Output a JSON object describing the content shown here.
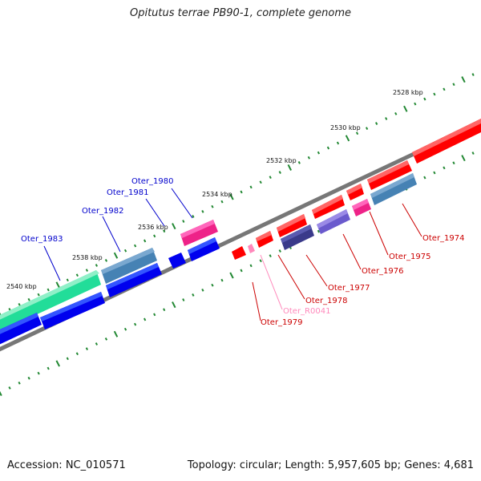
{
  "title": "Opitutus terrae PB90-1, complete genome",
  "footer": {
    "accession": "Accession: NC_010571",
    "topology": "Topology: circular",
    "length": "Length: 5,957,605 bp",
    "genes": "Genes: 4,681"
  },
  "ticks": [
    {
      "label": "2528 kbp"
    },
    {
      "label": "2530 kbp"
    },
    {
      "label": "2532 kbp"
    },
    {
      "label": "2534 kbp"
    },
    {
      "label": "2536 kbp"
    },
    {
      "label": "2538 kbp"
    },
    {
      "label": "2540 kbp"
    }
  ],
  "genes": [
    {
      "label": "Oter_1980",
      "color": "#0000cc"
    },
    {
      "label": "Oter_1981",
      "color": "#0000cc"
    },
    {
      "label": "Oter_1982",
      "color": "#0000cc"
    },
    {
      "label": "Oter_1983",
      "color": "#0000cc"
    },
    {
      "label": "Oter_1974",
      "color": "#cc0000"
    },
    {
      "label": "Oter_1975",
      "color": "#cc0000"
    },
    {
      "label": "Oter_1976",
      "color": "#cc0000"
    },
    {
      "label": "Oter_1977",
      "color": "#cc0000"
    },
    {
      "label": "Oter_1978",
      "color": "#cc0000"
    },
    {
      "label": "Oter_R0041",
      "color": "#ff88bb"
    },
    {
      "label": "Oter_1979",
      "color": "#cc0000"
    }
  ]
}
